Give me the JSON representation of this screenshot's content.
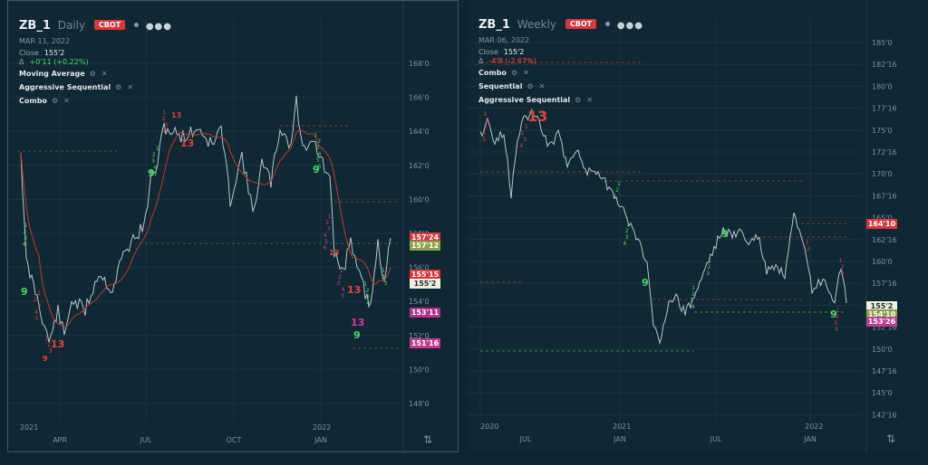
{
  "left": {
    "symbol": "ZB_1",
    "timeframe": "Daily",
    "exchange": "CBOT",
    "more_icon": "more-dots-icon",
    "date": "MAR 11, 2022",
    "close_label": "Close",
    "close_value": "155'2",
    "change_symbol": "Δ",
    "change_value": "+0'11 (+0.22%)",
    "change_color": "#4cd964",
    "indicators": [
      {
        "label": "Moving Average"
      },
      {
        "label": "Aggressive Sequential"
      },
      {
        "label": "Combo"
      }
    ],
    "y_ticks": [
      "168'0",
      "166'0",
      "164'0",
      "162'0",
      "160'0",
      "158'0",
      "156'0",
      "154'0",
      "152'0",
      "150'0",
      "148'0"
    ],
    "x_year_labels": [
      "2021",
      "2022"
    ],
    "x_month_labels": [
      "APR",
      "JUL",
      "OCT",
      "JAN"
    ],
    "price_tags": [
      {
        "text": "157'24",
        "color": "#d8363b"
      },
      {
        "text": "157'12",
        "color": "#8aa34a"
      },
      {
        "text": "155'15",
        "color": "#d8363b"
      },
      {
        "text": "155'2",
        "color": "#f1efdc"
      },
      {
        "text": "153'11",
        "color": "#b52f8c"
      },
      {
        "text": "151'16",
        "color": "#c03a90"
      }
    ],
    "markers": [
      "13",
      "9",
      "13",
      "9",
      "13",
      "9",
      "9",
      "13",
      "13",
      "9",
      "13"
    ]
  },
  "right": {
    "symbol": "ZB_1",
    "timeframe": "Weekly",
    "exchange": "CBOT",
    "more_icon": "more-dots-icon",
    "date": "MAR 06, 2022",
    "close_label": "Close",
    "close_value": "155'2",
    "change_symbol": "Δ",
    "change_value": "-4'8 (-2.67%)",
    "change_color": "#ff453a",
    "indicators": [
      {
        "label": "Combo"
      },
      {
        "label": "Sequential"
      },
      {
        "label": "Aggressive Sequential"
      }
    ],
    "y_ticks": [
      "185'0",
      "182'16",
      "180'0",
      "177'16",
      "175'0",
      "172'16",
      "170'0",
      "167'16",
      "165'0",
      "162'16",
      "160'0",
      "157'16",
      "155'0",
      "152'16",
      "150'0",
      "147'16",
      "145'0",
      "142'16"
    ],
    "x_year_labels": [
      "2020",
      "2021",
      "2022"
    ],
    "x_month_labels": [
      "JUL",
      "JAN",
      "JUL",
      "JAN"
    ],
    "price_tags": [
      {
        "text": "164'10",
        "color": "#d8363b"
      },
      {
        "text": "155'2",
        "color": "#f1efdc"
      },
      {
        "text": "154'10",
        "color": "#8aa34a"
      },
      {
        "text": "153'26",
        "color": "#c03a90"
      }
    ],
    "markers": [
      "13",
      "9",
      "9",
      "9"
    ]
  },
  "colors": {
    "background": "#0f2531",
    "grid": "#1b3541",
    "price_line": "#b9c4ca",
    "ma_line": "#c0392b",
    "seq_green": "#4cd964",
    "seq_red": "#e0413b",
    "seq_magenta": "#d637a3"
  }
}
